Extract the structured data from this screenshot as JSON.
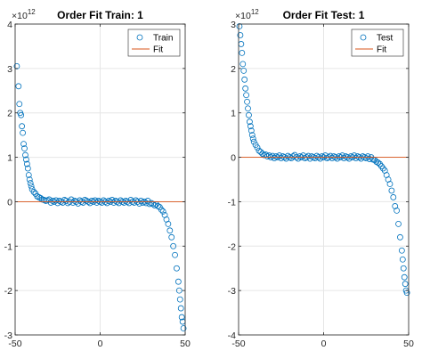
{
  "chart_data": [
    {
      "type": "scatter",
      "title": "Order Fit Train: 1",
      "xlabel": "",
      "ylabel": "",
      "xlim": [
        -50,
        50
      ],
      "ylim": [
        -3,
        4
      ],
      "y_exponent_label": "10",
      "y_exponent_power": "12",
      "x_ticks": [
        "-50",
        "0",
        "50"
      ],
      "y_ticks": [
        "-3",
        "-2",
        "-1",
        "0",
        "1",
        "2",
        "3",
        "4"
      ],
      "grid": true,
      "legend": {
        "position": "top-right",
        "entries": [
          "Train",
          "Fit"
        ]
      },
      "series": [
        {
          "name": "Train",
          "marker": "circle-open",
          "color": "#0072BD",
          "points": [
            [
              -49,
              3.05
            ],
            [
              -48,
              2.6
            ],
            [
              -47.5,
              2.2
            ],
            [
              -47,
              2.0
            ],
            [
              -46.5,
              1.95
            ],
            [
              -46,
              1.7
            ],
            [
              -45.5,
              1.55
            ],
            [
              -45,
              1.3
            ],
            [
              -44.5,
              1.2
            ],
            [
              -44,
              1.05
            ],
            [
              -43.5,
              0.95
            ],
            [
              -43,
              0.85
            ],
            [
              -42.5,
              0.75
            ],
            [
              -42,
              0.6
            ],
            [
              -41.5,
              0.5
            ],
            [
              -41,
              0.42
            ],
            [
              -40.5,
              0.35
            ],
            [
              -40,
              0.28
            ],
            [
              -39,
              0.22
            ],
            [
              -38,
              0.18
            ],
            [
              -37,
              0.12
            ],
            [
              -36,
              0.1
            ],
            [
              -35,
              0.08
            ],
            [
              -34,
              0.05
            ],
            [
              -33,
              0.04
            ],
            [
              -32,
              0.02
            ],
            [
              -31,
              0.03
            ],
            [
              -30,
              0.05
            ],
            [
              -29,
              -0.02
            ],
            [
              -28,
              0.02
            ],
            [
              -27,
              0.0
            ],
            [
              -26,
              0.03
            ],
            [
              -25,
              -0.03
            ],
            [
              -24,
              0.02
            ],
            [
              -23,
              0.0
            ],
            [
              -22,
              -0.02
            ],
            [
              -21,
              0.04
            ],
            [
              -20,
              0.02
            ],
            [
              -19,
              -0.03
            ],
            [
              -18,
              0.0
            ],
            [
              -17,
              0.05
            ],
            [
              -16,
              -0.02
            ],
            [
              -15,
              0.02
            ],
            [
              -14,
              0.0
            ],
            [
              -13,
              -0.04
            ],
            [
              -12,
              0.03
            ],
            [
              -11,
              0.0
            ],
            [
              -10,
              -0.02
            ],
            [
              -9,
              0.04
            ],
            [
              -8,
              0.02
            ],
            [
              -7,
              0.0
            ],
            [
              -6,
              -0.03
            ],
            [
              -5,
              0.02
            ],
            [
              -4,
              0.0
            ],
            [
              -3,
              0.03
            ],
            [
              -2,
              -0.02
            ],
            [
              -1,
              0.02
            ],
            [
              0,
              0.0
            ],
            [
              1,
              -0.02
            ],
            [
              2,
              0.03
            ],
            [
              3,
              0.0
            ],
            [
              4,
              -0.03
            ],
            [
              5,
              0.02
            ],
            [
              6,
              0.0
            ],
            [
              7,
              0.04
            ],
            [
              8,
              -0.02
            ],
            [
              9,
              0.02
            ],
            [
              10,
              0.0
            ],
            [
              11,
              -0.03
            ],
            [
              12,
              0.03
            ],
            [
              13,
              0.0
            ],
            [
              14,
              -0.02
            ],
            [
              15,
              0.02
            ],
            [
              16,
              0.0
            ],
            [
              17,
              -0.03
            ],
            [
              18,
              0.04
            ],
            [
              19,
              0.0
            ],
            [
              20,
              -0.02
            ],
            [
              21,
              0.03
            ],
            [
              22,
              0.0
            ],
            [
              23,
              -0.04
            ],
            [
              24,
              0.02
            ],
            [
              25,
              -0.02
            ],
            [
              26,
              0.0
            ],
            [
              27,
              -0.03
            ],
            [
              28,
              0.02
            ],
            [
              29,
              -0.05
            ],
            [
              30,
              -0.03
            ],
            [
              31,
              -0.05
            ],
            [
              32,
              -0.08
            ],
            [
              33,
              -0.06
            ],
            [
              34,
              -0.1
            ],
            [
              35,
              -0.12
            ],
            [
              36,
              -0.18
            ],
            [
              37,
              -0.22
            ],
            [
              38,
              -0.3
            ],
            [
              39,
              -0.4
            ],
            [
              40,
              -0.5
            ],
            [
              41,
              -0.65
            ],
            [
              42,
              -0.8
            ],
            [
              43,
              -1.0
            ],
            [
              44,
              -1.2
            ],
            [
              45,
              -1.5
            ],
            [
              46,
              -1.8
            ],
            [
              46.5,
              -2.0
            ],
            [
              47,
              -2.2
            ],
            [
              47.5,
              -2.4
            ],
            [
              48,
              -2.6
            ],
            [
              48.5,
              -2.7
            ],
            [
              49,
              -2.85
            ]
          ]
        },
        {
          "name": "Fit",
          "marker": "line",
          "color": "#D95319",
          "points": [
            [
              -50,
              0
            ],
            [
              50,
              0
            ]
          ]
        }
      ]
    },
    {
      "type": "scatter",
      "title": "Order Fit Test: 1",
      "xlabel": "",
      "ylabel": "",
      "xlim": [
        -50,
        50
      ],
      "ylim": [
        -4,
        3
      ],
      "y_exponent_label": "10",
      "y_exponent_power": "12",
      "x_ticks": [
        "-50",
        "0",
        "50"
      ],
      "y_ticks": [
        "-4",
        "-3",
        "-2",
        "-1",
        "0",
        "1",
        "2",
        "3"
      ],
      "grid": true,
      "legend": {
        "position": "top-right",
        "entries": [
          "Test",
          "Fit"
        ]
      },
      "series": [
        {
          "name": "Test",
          "marker": "circle-open",
          "color": "#0072BD",
          "points": [
            [
              -49.5,
              2.95
            ],
            [
              -49,
              2.75
            ],
            [
              -48.5,
              2.55
            ],
            [
              -48,
              2.35
            ],
            [
              -47.5,
              2.1
            ],
            [
              -47,
              1.95
            ],
            [
              -46.5,
              1.75
            ],
            [
              -46,
              1.55
            ],
            [
              -45.5,
              1.4
            ],
            [
              -45,
              1.25
            ],
            [
              -44.5,
              1.1
            ],
            [
              -44,
              0.95
            ],
            [
              -43.5,
              0.8
            ],
            [
              -43,
              0.7
            ],
            [
              -42.5,
              0.6
            ],
            [
              -42,
              0.5
            ],
            [
              -41.5,
              0.42
            ],
            [
              -41,
              0.35
            ],
            [
              -40,
              0.28
            ],
            [
              -39,
              0.22
            ],
            [
              -38,
              0.15
            ],
            [
              -37,
              0.12
            ],
            [
              -36,
              0.08
            ],
            [
              -35,
              0.05
            ],
            [
              -34,
              0.06
            ],
            [
              -33,
              0.02
            ],
            [
              -32,
              0.04
            ],
            [
              -31,
              0.0
            ],
            [
              -30,
              0.03
            ],
            [
              -29,
              -0.02
            ],
            [
              -28,
              0.02
            ],
            [
              -27,
              0.0
            ],
            [
              -26,
              0.04
            ],
            [
              -25,
              -0.02
            ],
            [
              -24,
              0.02
            ],
            [
              -23,
              0.0
            ],
            [
              -22,
              -0.03
            ],
            [
              -21,
              0.03
            ],
            [
              -20,
              0.0
            ],
            [
              -19,
              -0.02
            ],
            [
              -18,
              0.02
            ],
            [
              -17,
              0.05
            ],
            [
              -16,
              0.0
            ],
            [
              -15,
              -0.03
            ],
            [
              -14,
              0.02
            ],
            [
              -13,
              0.0
            ],
            [
              -12,
              0.04
            ],
            [
              -11,
              -0.02
            ],
            [
              -10,
              0.0
            ],
            [
              -9,
              0.03
            ],
            [
              -8,
              -0.03
            ],
            [
              -7,
              0.02
            ],
            [
              -6,
              0.0
            ],
            [
              -5,
              -0.02
            ],
            [
              -4,
              0.03
            ],
            [
              -3,
              0.0
            ],
            [
              -2,
              -0.03
            ],
            [
              -1,
              0.02
            ],
            [
              0,
              0.0
            ],
            [
              1,
              0.04
            ],
            [
              2,
              -0.02
            ],
            [
              3,
              0.0
            ],
            [
              4,
              0.03
            ],
            [
              5,
              -0.02
            ],
            [
              6,
              0.02
            ],
            [
              7,
              0.0
            ],
            [
              8,
              -0.03
            ],
            [
              9,
              0.02
            ],
            [
              10,
              0.0
            ],
            [
              11,
              0.04
            ],
            [
              12,
              -0.02
            ],
            [
              13,
              0.02
            ],
            [
              14,
              0.0
            ],
            [
              15,
              -0.03
            ],
            [
              16,
              0.02
            ],
            [
              17,
              0.0
            ],
            [
              18,
              0.04
            ],
            [
              19,
              -0.02
            ],
            [
              20,
              0.02
            ],
            [
              21,
              0.0
            ],
            [
              22,
              -0.03
            ],
            [
              23,
              0.02
            ],
            [
              24,
              0.0
            ],
            [
              25,
              -0.02
            ],
            [
              26,
              0.02
            ],
            [
              27,
              -0.04
            ],
            [
              28,
              0.0
            ],
            [
              29,
              -0.05
            ],
            [
              30,
              -0.06
            ],
            [
              31,
              -0.1
            ],
            [
              32,
              -0.12
            ],
            [
              33,
              -0.15
            ],
            [
              34,
              -0.2
            ],
            [
              35,
              -0.25
            ],
            [
              36,
              -0.3
            ],
            [
              37,
              -0.4
            ],
            [
              38,
              -0.5
            ],
            [
              39,
              -0.6
            ],
            [
              40,
              -0.75
            ],
            [
              41,
              -0.9
            ],
            [
              42,
              -1.1
            ],
            [
              43,
              -1.2
            ],
            [
              44,
              -1.5
            ],
            [
              45,
              -1.8
            ],
            [
              46,
              -2.1
            ],
            [
              46.5,
              -2.3
            ],
            [
              47,
              -2.5
            ],
            [
              47.5,
              -2.7
            ],
            [
              48,
              -2.85
            ],
            [
              48.5,
              -3.0
            ],
            [
              49,
              -3.05
            ]
          ]
        },
        {
          "name": "Fit",
          "marker": "line",
          "color": "#D95319",
          "points": [
            [
              -50,
              0
            ],
            [
              50,
              0
            ]
          ]
        }
      ]
    }
  ]
}
